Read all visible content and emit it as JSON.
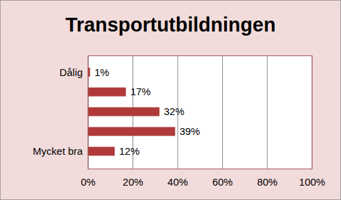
{
  "chart_data": {
    "type": "bar",
    "title": "Transportutbildningen",
    "orientation": "horizontal",
    "categories": [
      "Dålig",
      null,
      null,
      null,
      "Mycket bra"
    ],
    "values": [
      1,
      17,
      32,
      39,
      12
    ],
    "value_labels": [
      "1%",
      "17%",
      "32%",
      "39%",
      "12%"
    ],
    "data_labels": true,
    "color": "#b03a3a",
    "xlim": [
      0,
      100
    ],
    "xticks": [
      {
        "value": 0,
        "label": "0%"
      },
      {
        "value": 20,
        "label": "20%"
      },
      {
        "value": 40,
        "label": "40%"
      },
      {
        "value": 60,
        "label": "60%"
      },
      {
        "value": 80,
        "label": "80%"
      },
      {
        "value": 100,
        "label": "100%"
      }
    ],
    "grid": true
  }
}
